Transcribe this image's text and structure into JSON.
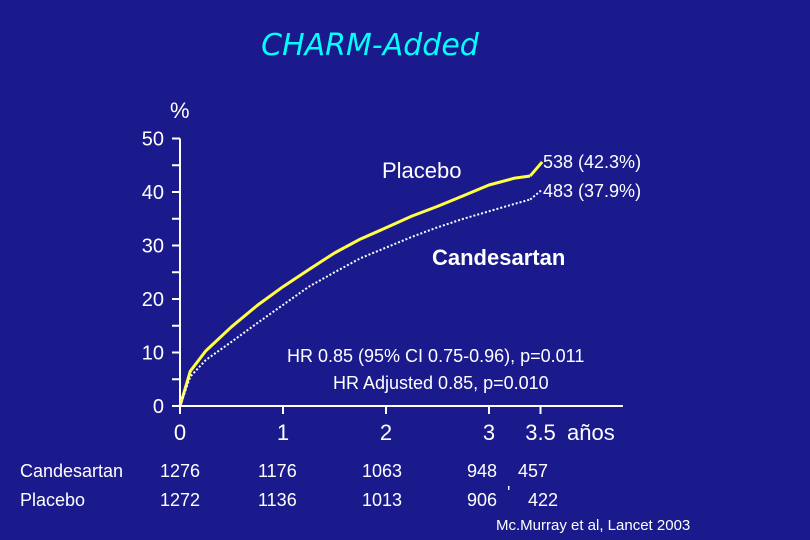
{
  "chart_data": {
    "type": "line",
    "title": "CHARM-Added",
    "ylabel": "%",
    "xlabel": "años",
    "xlim": [
      0,
      4.3
    ],
    "ylim": [
      0,
      50
    ],
    "x_ticks": [
      "0",
      "1",
      "2",
      "3",
      "3.5"
    ],
    "y_ticks": [
      "0",
      "10",
      "20",
      "30",
      "40",
      "50"
    ],
    "series": [
      {
        "name": "Placebo",
        "style": "solid",
        "color": "#ffff44",
        "x": [
          0,
          0.1,
          0.25,
          0.5,
          0.75,
          1.0,
          1.25,
          1.5,
          1.75,
          2.0,
          2.25,
          2.5,
          2.75,
          3.0,
          3.25,
          3.4
        ],
        "y": [
          0,
          6.5,
          10.3,
          14.8,
          18.8,
          22.3,
          25.5,
          28.6,
          31.2,
          33.3,
          35.5,
          37.3,
          39.3,
          41.3,
          42.6,
          43.0
        ],
        "end_label": "538 (42.3%)"
      },
      {
        "name": "Candesartan",
        "style": "dotted",
        "color": "#ffffff",
        "x": [
          0,
          0.1,
          0.25,
          0.5,
          0.75,
          1.0,
          1.25,
          1.5,
          1.75,
          2.0,
          2.25,
          2.5,
          2.75,
          3.0,
          3.25,
          3.4
        ],
        "y": [
          0,
          5.5,
          8.6,
          12.0,
          15.5,
          18.9,
          22.3,
          25.0,
          27.6,
          29.6,
          31.6,
          33.4,
          35.0,
          36.4,
          37.8,
          38.6
        ],
        "end_label": "483 (37.9%)"
      }
    ],
    "annotations": [
      "HR 0.85  (95% CI 0.75-0.96), p=0.011",
      "HR Adjusted 0.85, p=0.010"
    ],
    "risk_table": {
      "rows": [
        {
          "label": "Candesartan",
          "values": [
            "1276",
            "1176",
            "1063",
            "948",
            "457"
          ]
        },
        {
          "label": "Placebo",
          "values": [
            "1272",
            "1136",
            "1013",
            "906",
            "422"
          ]
        }
      ]
    },
    "source": "Mc.Murray et al, Lancet 2003"
  }
}
